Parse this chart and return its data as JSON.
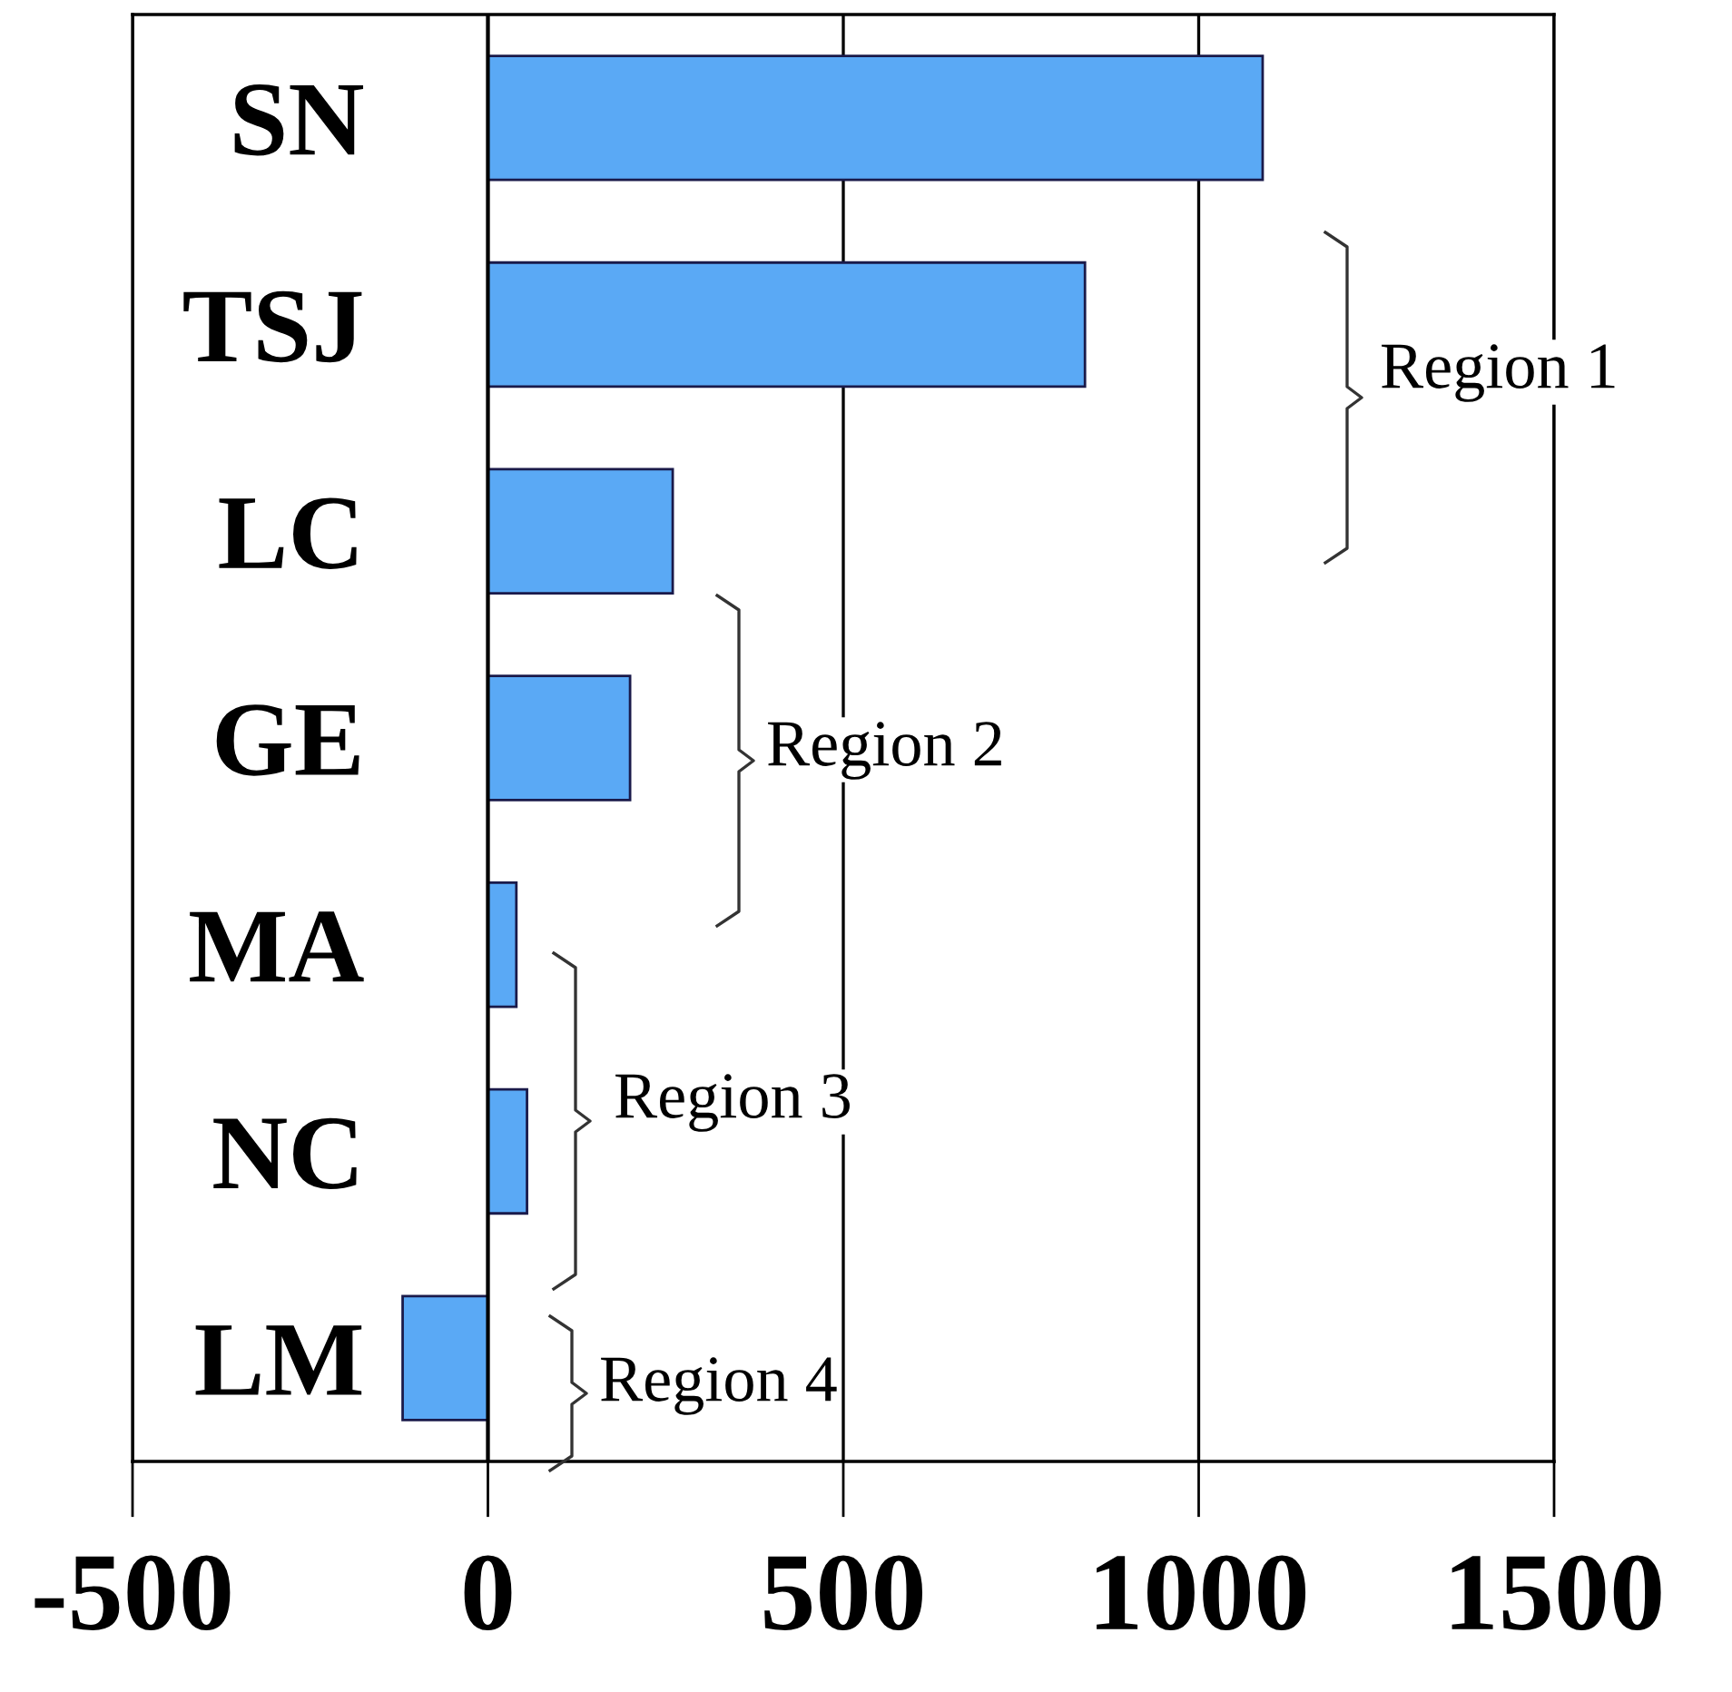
{
  "chart_data": {
    "type": "bar",
    "orientation": "horizontal",
    "categories": [
      "SN",
      "TSJ",
      "LC",
      "GE",
      "MA",
      "NC",
      "LM"
    ],
    "values": [
      1090,
      840,
      260,
      200,
      40,
      55,
      -120
    ],
    "color": "#5aa9f5",
    "xlim": [
      -500,
      1500
    ],
    "xticks": [
      -500,
      0,
      500,
      1000,
      1500
    ],
    "grid": "x",
    "ref_lines": [
      {
        "axis": "x",
        "value": 0
      }
    ],
    "annotations": [
      "Region 1",
      "Region 2",
      "Region 3",
      "Region 4"
    ]
  }
}
